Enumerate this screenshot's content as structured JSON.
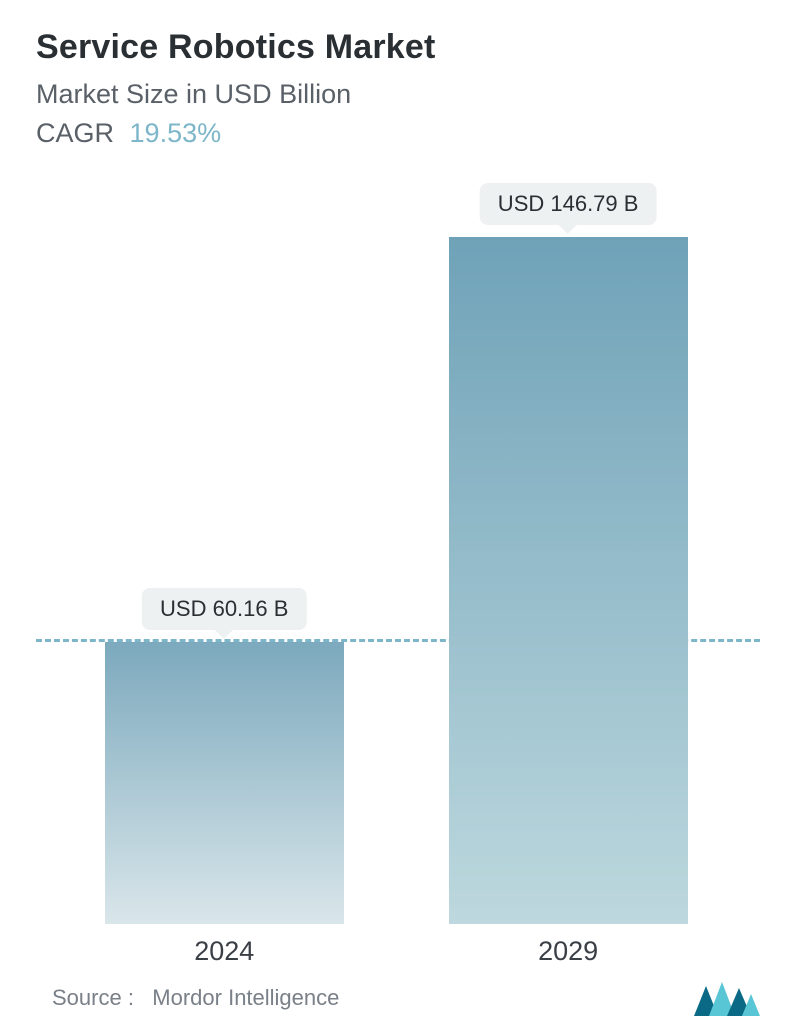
{
  "header": {
    "title": "Service Robotics Market",
    "subtitle": "Market Size in USD Billion",
    "cagr_label": "CAGR",
    "cagr_value": "19.53%",
    "title_color": "#2a2f34",
    "subtitle_color": "#5a6068",
    "cagr_value_color": "#7db6c9",
    "title_fontsize": 34,
    "subtitle_fontsize": 27
  },
  "chart": {
    "type": "bar",
    "background_color": "#ffffff",
    "y_max": 160,
    "reference_line": {
      "value": 60.16,
      "color": "#7db6c9",
      "dash": true,
      "width": 3
    },
    "bars": [
      {
        "category": "2024",
        "value": 60.16,
        "label": "USD 60.16 B",
        "left_pct": 9.5,
        "width_pct": 33,
        "gradient_top": "#7ca9bd",
        "gradient_bottom": "#d9e6ea"
      },
      {
        "category": "2029",
        "value": 146.79,
        "label": "USD 146.79 B",
        "left_pct": 57,
        "width_pct": 33,
        "gradient_top": "#6fa2b8",
        "gradient_bottom": "#bdd8de"
      }
    ],
    "value_badge": {
      "bg": "#eef1f2",
      "text_color": "#2a2f34",
      "fontsize": 22,
      "radius": 8
    },
    "x_label_color": "#3a3f45",
    "x_label_fontsize": 27
  },
  "footer": {
    "source_label": "Source :",
    "source_name": "Mordor Intelligence",
    "source_color": "#7a8088",
    "source_fontsize": 22,
    "logo_colors": {
      "dark": "#0a6a85",
      "light": "#58c6d4"
    }
  }
}
